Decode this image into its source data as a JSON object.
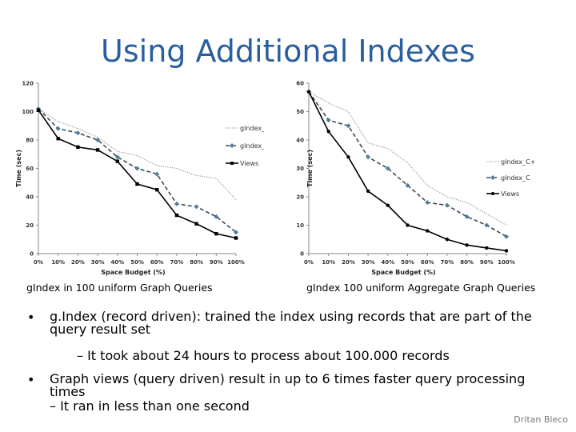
{
  "slide": {
    "title": "Using Additional Indexes",
    "author": "Dritan Bleco"
  },
  "captions": [
    "gIndex in 100 uniform Graph Queries",
    "gIndex 100 uniform Aggregate Graph Queries"
  ],
  "bullets": [
    {
      "lines": [
        "g.Index (record driven): trained the index using records that are part of the",
        "query result set"
      ]
    },
    {
      "sub": "– It took about 24 hours to process about 100.000 records"
    },
    {
      "lines": [
        "Graph views (query driven) result in up to 6 times faster query processing",
        "times"
      ]
    },
    {
      "sub": "– It ran in less than one second"
    }
  ],
  "chart_data": [
    {
      "type": "line",
      "x": [
        "0%",
        "10%",
        "20%",
        "30%",
        "40%",
        "50%",
        "60%",
        "70%",
        "80%",
        "90%",
        "100%"
      ],
      "xlabel": "Space Budget (%)",
      "ylabel": "Time (sec)",
      "ylim": [
        0,
        120
      ],
      "yticks": [
        "0",
        "20",
        "40",
        "60",
        "80",
        "100",
        "120"
      ],
      "legend_position": "right",
      "series": [
        {
          "name": "gIndex_Q+D",
          "style": "dotted",
          "color": "#8a8a8a",
          "values": [
            102,
            93,
            88,
            82,
            72,
            69,
            62,
            60,
            55,
            53,
            38
          ]
        },
        {
          "name": "gIndex_Q",
          "style": "dashed",
          "color": "#3a4a5a",
          "marker": "diamond",
          "values": [
            102,
            88,
            85,
            80,
            68,
            60,
            56,
            35,
            33,
            26,
            15
          ]
        },
        {
          "name": "Views",
          "style": "solid",
          "color": "#000000",
          "marker": "square",
          "values": [
            101,
            81,
            75,
            73,
            65,
            49,
            45,
            27,
            21,
            14,
            11
          ]
        }
      ]
    },
    {
      "type": "line",
      "x": [
        "0%",
        "10%",
        "20%",
        "30%",
        "40%",
        "50%",
        "60%",
        "70%",
        "80%",
        "90%",
        "100%"
      ],
      "xlabel": "Space Budget (%)",
      "ylabel": "Time (sec)",
      "ylim": [
        0,
        60
      ],
      "yticks": [
        "0",
        "10",
        "20",
        "30",
        "40",
        "50",
        "60"
      ],
      "legend_position": "right",
      "series": [
        {
          "name": "gIndex_C+D",
          "style": "dotted",
          "color": "#8a8a8a",
          "values": [
            57,
            53,
            50,
            39,
            37,
            32,
            24,
            20,
            18,
            14,
            10
          ]
        },
        {
          "name": "gIndex_C",
          "style": "dashed",
          "color": "#3a4a5a",
          "marker": "diamond",
          "values": [
            57,
            47,
            45,
            34,
            30,
            24,
            18,
            17,
            13,
            10,
            6
          ]
        },
        {
          "name": "Views",
          "style": "solid",
          "color": "#000000",
          "marker": "dot",
          "values": [
            57,
            43,
            34,
            22,
            17,
            10,
            8,
            5,
            3,
            2,
            1
          ]
        }
      ]
    }
  ]
}
